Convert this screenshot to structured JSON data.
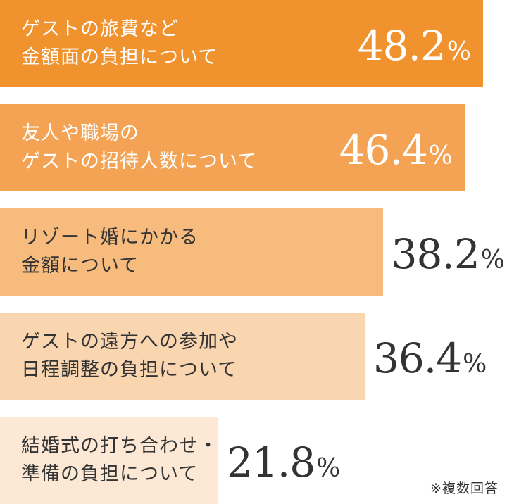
{
  "chart_data": {
    "type": "bar",
    "orientation": "horizontal",
    "categories": [
      [
        "ゲストの旅費など",
        "金額面の負担について"
      ],
      [
        "友人や職場の",
        "ゲストの招待人数について"
      ],
      [
        "リゾート婚にかかる",
        "金額について"
      ],
      [
        "ゲストの遠方への参加や",
        "日程調整の負担について"
      ],
      [
        "結婚式の打ち合わせ・",
        "準備の負担について"
      ]
    ],
    "values": [
      48.2,
      46.4,
      38.2,
      36.4,
      21.8
    ],
    "value_labels": [
      "48.2",
      "46.4",
      "38.2",
      "36.4",
      "21.8"
    ],
    "unit": "%",
    "colors": [
      "#f0932f",
      "#f3a353",
      "#f6bb7d",
      "#f9d5b0",
      "#fce8d5"
    ],
    "label_colors": [
      "#ffffff",
      "#ffffff",
      "#333333",
      "#333333",
      "#333333"
    ],
    "value_colors": [
      "#ffffff",
      "#ffffff",
      "#333333",
      "#333333",
      "#333333"
    ],
    "xlim": [
      0,
      50.6
    ]
  },
  "footnote": "※複数回答"
}
